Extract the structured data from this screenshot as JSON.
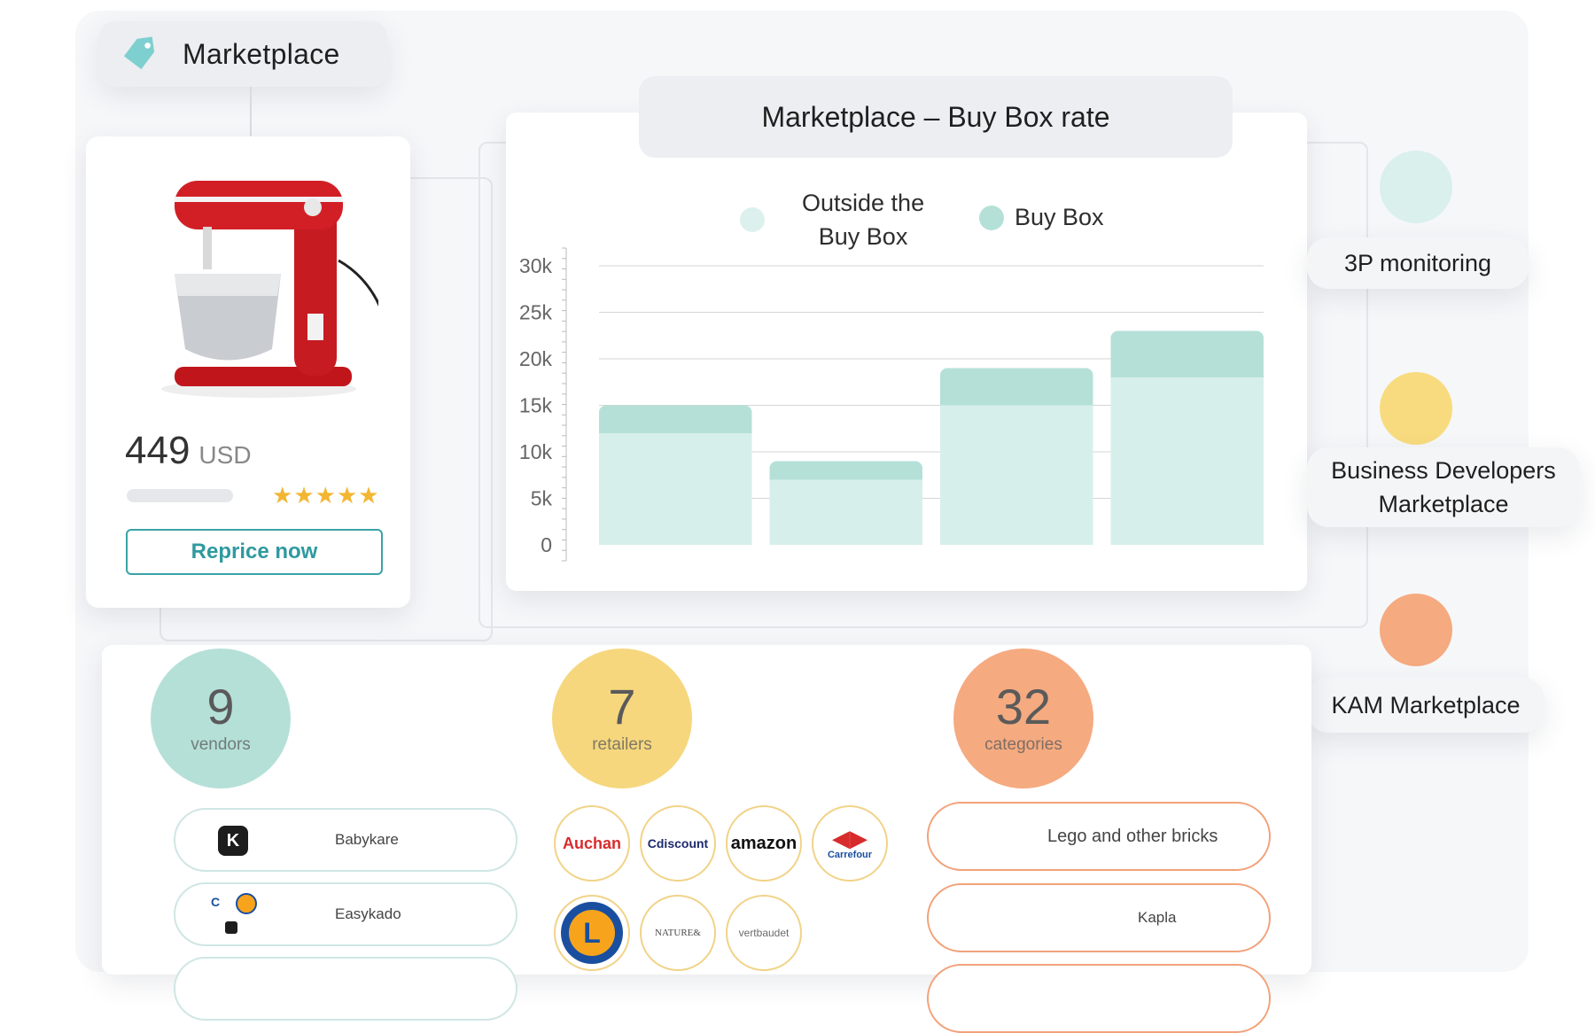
{
  "header": {
    "title": "Marketplace"
  },
  "product": {
    "price": "449",
    "currency": "USD",
    "rating_stars": 5,
    "reprice_label": "Reprice now"
  },
  "chart_card": {
    "title": "Marketplace – Buy Box rate",
    "legend": {
      "outside_line1": "Outside the",
      "outside_line2": "Buy Box",
      "buybox": "Buy Box"
    }
  },
  "chart_data": {
    "type": "bar",
    "stacked": true,
    "categories": [
      "",
      "",
      "",
      ""
    ],
    "series": [
      {
        "name": "Outside the Buy Box",
        "values": [
          12000,
          7000,
          15000,
          18000
        ],
        "color": "#d7efeb"
      },
      {
        "name": "Buy Box",
        "values": [
          3000,
          2000,
          4000,
          5000
        ],
        "color": "#b5e0d8"
      }
    ],
    "ylim": [
      0,
      30000
    ],
    "yticks": [
      "0",
      "5k",
      "10k",
      "15k",
      "20k",
      "25k",
      "30k"
    ],
    "grid": true,
    "legend_position": "top"
  },
  "side_roles": [
    {
      "label": "3P monitoring",
      "color": "#d9f0ec"
    },
    {
      "label_line1": "Business Developers",
      "label_line2": "Marketplace",
      "color": "#f8db7e"
    },
    {
      "label": "KAM Marketplace",
      "color": "#f5aa80"
    }
  ],
  "stats": {
    "vendors": {
      "value": "9",
      "label": "vendors",
      "color": "#b5e0d8"
    },
    "retailers": {
      "value": "7",
      "label": "retailers",
      "color": "#f6d77e"
    },
    "categories": {
      "value": "32",
      "label": "categories",
      "color": "#f5aa80"
    }
  },
  "vendors": [
    {
      "name": "Babykare"
    },
    {
      "name": "Easykado"
    }
  ],
  "retailers": [
    {
      "name": "Auchan",
      "text": "Auchan",
      "color": "#d82b2b"
    },
    {
      "name": "Cdiscount",
      "text": "Cdiscount",
      "color": "#1e2a6e"
    },
    {
      "name": "amazon",
      "text": "amazon",
      "color": "#111111"
    },
    {
      "name": "Carrefour",
      "text": "Carrefour",
      "color": "#1a4fa0"
    },
    {
      "name": "E.Leclerc",
      "text": "L",
      "color": "#1a4fa0"
    },
    {
      "name": "Nature & Découvertes",
      "text": "NATURE&",
      "color": "#4a4a4a"
    },
    {
      "name": "vertbaudet",
      "text": "vertbaudet",
      "color": "#6a6a6a"
    }
  ],
  "categories_list": [
    {
      "name": "Lego and other bricks"
    },
    {
      "name": "Kapla"
    }
  ],
  "colors": {
    "teal": "#3aa3a5",
    "yellow": "#f6d77e",
    "orange": "#f5aa80",
    "star": "#f3b632"
  }
}
